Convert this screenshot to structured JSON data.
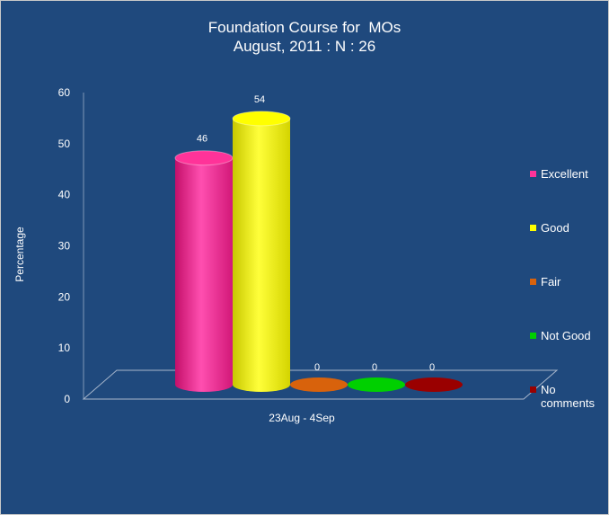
{
  "chart_data": {
    "type": "bar",
    "title": [
      "Foundation Course for  MOs",
      "August, 2011 : N : 26"
    ],
    "ylabel": "Percentage",
    "xlabel": "",
    "categories": [
      "23Aug - 4Sep"
    ],
    "series": [
      {
        "name": "Excellent",
        "values": [
          46
        ],
        "color": "#ff3399"
      },
      {
        "name": "Good",
        "values": [
          54
        ],
        "color": "#ffff00"
      },
      {
        "name": "Fair",
        "values": [
          0
        ],
        "color": "#d8620c"
      },
      {
        "name": "Not Good",
        "values": [
          0
        ],
        "color": "#00d000"
      },
      {
        "name": "No comments",
        "values": [
          0
        ],
        "color": "#9a0000"
      }
    ],
    "ylim": [
      0,
      60
    ],
    "yticks": [
      0,
      10,
      20,
      30,
      40,
      50,
      60
    ],
    "data_labels": [
      "46",
      "54",
      "0",
      "0",
      "0"
    ],
    "legend_position": "right",
    "grid": false,
    "style": "3d-cylinder"
  }
}
